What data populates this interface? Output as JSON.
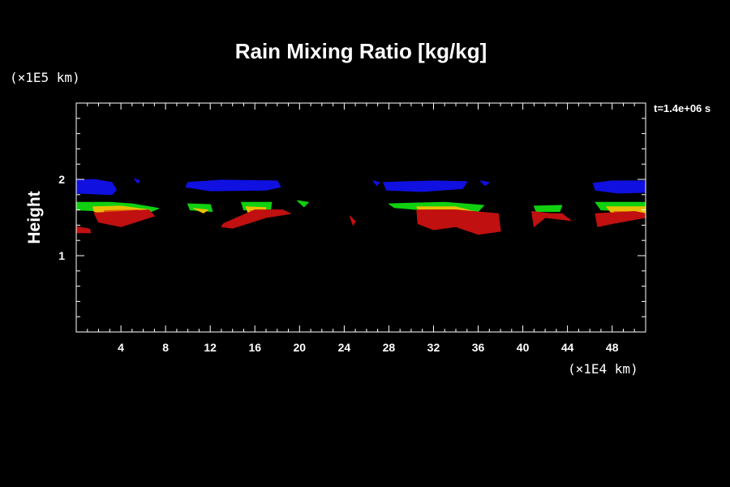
{
  "chart_data": {
    "type": "heatmap",
    "title": "Rain Mixing Ratio [kg/kg]",
    "ylabel": "Height",
    "yscale_note": "(×1E5 km)",
    "xscale_note": "(×1E4 km)",
    "time_label": "t=1.4e+06 s",
    "xlim": [
      0,
      51
    ],
    "ylim": [
      0,
      3
    ],
    "xticks": [
      4,
      8,
      12,
      16,
      20,
      24,
      28,
      32,
      36,
      40,
      44,
      48
    ],
    "yticks": [
      1,
      2
    ],
    "grid": false,
    "levels": [
      {
        "name": "blue",
        "color": "#1010e0"
      },
      {
        "name": "green",
        "color": "#10d010"
      },
      {
        "name": "yellow",
        "color": "#e8c000"
      },
      {
        "name": "orange",
        "color": "#e06000"
      },
      {
        "name": "red",
        "color": "#c01010"
      }
    ],
    "regions": [
      {
        "level": "blue",
        "x": [
          0.0,
          1.6,
          3.2,
          3.6,
          3.2,
          0.0
        ],
        "y": [
          1.99,
          2.0,
          1.96,
          1.86,
          1.8,
          1.82
        ]
      },
      {
        "level": "blue",
        "x": [
          10.0,
          13.0,
          18.0,
          18.3,
          17.0,
          12.0,
          9.8
        ],
        "y": [
          1.96,
          1.99,
          1.98,
          1.9,
          1.86,
          1.85,
          1.9
        ]
      },
      {
        "level": "blue",
        "x": [
          27.5,
          32.0,
          35.0,
          34.6,
          31.0,
          27.8
        ],
        "y": [
          1.96,
          1.98,
          1.97,
          1.88,
          1.84,
          1.86
        ]
      },
      {
        "level": "blue",
        "x": [
          46.3,
          48.0,
          51.0,
          51.0,
          48.5,
          46.5
        ],
        "y": [
          1.95,
          1.98,
          1.98,
          1.83,
          1.82,
          1.86
        ]
      },
      {
        "level": "blue",
        "x": [
          5.2,
          5.7,
          5.5
        ],
        "y": [
          2.01,
          1.98,
          1.95
        ]
      },
      {
        "level": "blue",
        "x": [
          26.6,
          27.2,
          26.9
        ],
        "y": [
          1.98,
          1.96,
          1.92
        ]
      },
      {
        "level": "blue",
        "x": [
          36.2,
          37.0,
          36.6
        ],
        "y": [
          1.98,
          1.96,
          1.92
        ]
      },
      {
        "level": "green",
        "x": [
          0.0,
          3.0,
          5.0,
          7.4,
          6.4,
          3.0,
          0.0
        ],
        "y": [
          1.7,
          1.7,
          1.68,
          1.62,
          1.56,
          1.58,
          1.6
        ]
      },
      {
        "level": "green",
        "x": [
          10.0,
          12.0,
          12.2,
          10.2
        ],
        "y": [
          1.68,
          1.67,
          1.58,
          1.6
        ]
      },
      {
        "level": "green",
        "x": [
          14.8,
          17.5,
          17.4,
          15.0
        ],
        "y": [
          1.7,
          1.7,
          1.6,
          1.6
        ]
      },
      {
        "level": "green",
        "x": [
          19.8,
          20.8,
          20.4
        ],
        "y": [
          1.72,
          1.7,
          1.64
        ]
      },
      {
        "level": "green",
        "x": [
          28.0,
          33.0,
          36.5,
          36.0,
          31.0,
          28.5
        ],
        "y": [
          1.68,
          1.7,
          1.66,
          1.58,
          1.6,
          1.63
        ]
      },
      {
        "level": "green",
        "x": [
          41.0,
          43.5,
          43.3,
          41.2
        ],
        "y": [
          1.65,
          1.66,
          1.58,
          1.58
        ]
      },
      {
        "level": "green",
        "x": [
          46.5,
          51.0,
          51.0,
          47.0
        ],
        "y": [
          1.7,
          1.7,
          1.58,
          1.6
        ]
      },
      {
        "level": "yellow",
        "x": [
          1.5,
          4.0,
          6.6,
          6.2,
          3.0,
          1.6
        ],
        "y": [
          1.64,
          1.65,
          1.6,
          1.5,
          1.52,
          1.58
        ]
      },
      {
        "level": "yellow",
        "x": [
          10.5,
          11.8,
          11.4
        ],
        "y": [
          1.62,
          1.6,
          1.56
        ]
      },
      {
        "level": "yellow",
        "x": [
          15.2,
          17.0,
          16.8,
          15.4
        ],
        "y": [
          1.64,
          1.63,
          1.56,
          1.56
        ]
      },
      {
        "level": "yellow",
        "x": [
          30.5,
          34.0,
          35.6,
          33.0,
          30.8
        ],
        "y": [
          1.64,
          1.64,
          1.58,
          1.54,
          1.56
        ]
      },
      {
        "level": "yellow",
        "x": [
          47.5,
          51.0,
          51.0,
          48.0
        ],
        "y": [
          1.64,
          1.64,
          1.55,
          1.55
        ]
      },
      {
        "level": "orange",
        "x": [
          2.5,
          5.5,
          6.4,
          4.0,
          2.6
        ],
        "y": [
          1.59,
          1.6,
          1.55,
          1.48,
          1.52
        ]
      },
      {
        "level": "orange",
        "x": [
          15.6,
          16.8,
          16.2
        ],
        "y": [
          1.59,
          1.57,
          1.53
        ]
      },
      {
        "level": "orange",
        "x": [
          31.5,
          34.0,
          34.5,
          32.0
        ],
        "y": [
          1.6,
          1.6,
          1.55,
          1.52
        ]
      },
      {
        "level": "orange",
        "x": [
          48.2,
          50.0,
          49.5
        ],
        "y": [
          1.58,
          1.57,
          1.52
        ]
      },
      {
        "level": "red",
        "x": [
          0.0,
          1.2,
          1.3,
          0.0
        ],
        "y": [
          1.38,
          1.35,
          1.3,
          1.3
        ]
      },
      {
        "level": "red",
        "x": [
          1.6,
          6.5,
          7.0,
          4.0,
          2.0
        ],
        "y": [
          1.56,
          1.6,
          1.52,
          1.38,
          1.44
        ]
      },
      {
        "level": "red",
        "x": [
          13.2,
          16.0,
          18.5,
          19.2,
          17.0,
          14.0,
          13.0
        ],
        "y": [
          1.42,
          1.6,
          1.6,
          1.55,
          1.5,
          1.36,
          1.38
        ]
      },
      {
        "level": "red",
        "x": [
          24.5,
          25.0,
          24.8
        ],
        "y": [
          1.52,
          1.45,
          1.4
        ]
      },
      {
        "level": "red",
        "x": [
          30.5,
          34.0,
          37.8,
          38.0,
          36.0,
          34.0,
          32.0,
          30.6
        ],
        "y": [
          1.6,
          1.6,
          1.55,
          1.32,
          1.28,
          1.38,
          1.34,
          1.42
        ]
      },
      {
        "level": "red",
        "x": [
          40.8,
          42.5,
          43.5,
          44.3,
          42.0,
          41.0
        ],
        "y": [
          1.58,
          1.55,
          1.55,
          1.46,
          1.5,
          1.38
        ]
      },
      {
        "level": "red",
        "x": [
          46.5,
          50.0,
          51.0,
          51.0,
          48.0,
          46.7
        ],
        "y": [
          1.55,
          1.58,
          1.55,
          1.5,
          1.42,
          1.38
        ]
      }
    ]
  }
}
